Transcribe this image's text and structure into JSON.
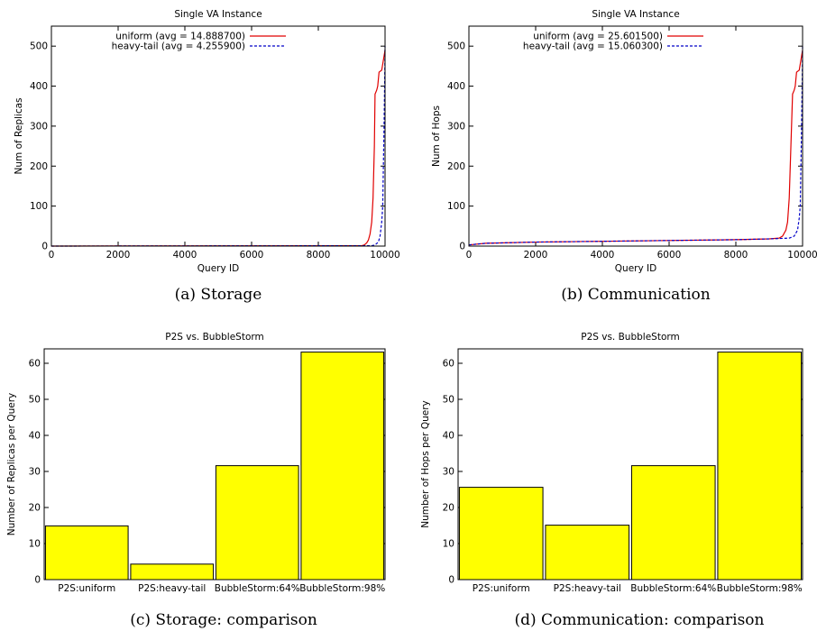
{
  "chart_data": [
    {
      "id": "a",
      "type": "line",
      "title": "Single VA Instance",
      "xlabel": "Query ID",
      "ylabel": "Num of Replicas",
      "xlim": [
        0,
        10000
      ],
      "ylim": [
        0,
        550
      ],
      "xticks": [
        0,
        2000,
        4000,
        6000,
        8000,
        10000
      ],
      "yticks": [
        0,
        100,
        200,
        300,
        400,
        500
      ],
      "legend_position": "top-right",
      "caption": "(a) Storage",
      "series": [
        {
          "name": "uniform (avg = 14.888700)",
          "color": "#e00000",
          "style": "solid",
          "points": [
            [
              0,
              0
            ],
            [
              9300,
              1
            ],
            [
              9380,
              3
            ],
            [
              9450,
              8
            ],
            [
              9500,
              15
            ],
            [
              9550,
              30
            ],
            [
              9600,
              60
            ],
            [
              9640,
              120
            ],
            [
              9680,
              250
            ],
            [
              9700,
              380
            ],
            [
              9750,
              390
            ],
            [
              9780,
              400
            ],
            [
              9820,
              435
            ],
            [
              9900,
              440
            ],
            [
              9960,
              470
            ],
            [
              10000,
              490
            ]
          ]
        },
        {
          "name": "heavy-tail (avg = 4.255900)",
          "color": "#0000c8",
          "style": "dashed",
          "points": [
            [
              0,
              0
            ],
            [
              9600,
              1
            ],
            [
              9700,
              3
            ],
            [
              9800,
              10
            ],
            [
              9850,
              25
            ],
            [
              9900,
              60
            ],
            [
              9930,
              100
            ],
            [
              9950,
              200
            ],
            [
              9970,
              300
            ],
            [
              9990,
              420
            ],
            [
              10000,
              500
            ]
          ]
        }
      ]
    },
    {
      "id": "b",
      "type": "line",
      "title": "Single VA Instance",
      "xlabel": "Query ID",
      "ylabel": "Num of Hops",
      "xlim": [
        0,
        10000
      ],
      "ylim": [
        0,
        550
      ],
      "xticks": [
        0,
        2000,
        4000,
        6000,
        8000,
        10000
      ],
      "yticks": [
        0,
        100,
        200,
        300,
        400,
        500
      ],
      "legend_position": "top-right",
      "caption": "(b) Communication",
      "series": [
        {
          "name": "uniform (avg = 25.601500)",
          "color": "#e00000",
          "style": "solid",
          "points": [
            [
              0,
              3
            ],
            [
              500,
              7
            ],
            [
              2000,
              10
            ],
            [
              4000,
              12
            ],
            [
              6000,
              14
            ],
            [
              8000,
              16
            ],
            [
              9000,
              18
            ],
            [
              9300,
              20
            ],
            [
              9400,
              25
            ],
            [
              9500,
              40
            ],
            [
              9550,
              60
            ],
            [
              9600,
              120
            ],
            [
              9650,
              250
            ],
            [
              9700,
              380
            ],
            [
              9750,
              390
            ],
            [
              9780,
              400
            ],
            [
              9820,
              435
            ],
            [
              9900,
              440
            ],
            [
              9960,
              470
            ],
            [
              10000,
              490
            ]
          ]
        },
        {
          "name": "heavy-tail (avg = 15.060300)",
          "color": "#0000c8",
          "style": "dashed",
          "points": [
            [
              0,
              3
            ],
            [
              500,
              7
            ],
            [
              2000,
              10
            ],
            [
              4000,
              12
            ],
            [
              6000,
              14
            ],
            [
              8000,
              16
            ],
            [
              9000,
              18
            ],
            [
              9600,
              20
            ],
            [
              9750,
              25
            ],
            [
              9850,
              40
            ],
            [
              9900,
              70
            ],
            [
              9930,
              100
            ],
            [
              9950,
              200
            ],
            [
              9970,
              300
            ],
            [
              9990,
              420
            ],
            [
              10000,
              500
            ]
          ]
        }
      ]
    },
    {
      "id": "c",
      "type": "bar",
      "title": "P2S vs. BubbleStorm",
      "xlabel": "",
      "ylabel": "Number of Replicas per Query",
      "ylim": [
        0,
        64
      ],
      "yticks": [
        0,
        10,
        20,
        30,
        40,
        50,
        60
      ],
      "bar_color": "#ffff00",
      "categories": [
        "P2S:uniform",
        "P2S:heavy-tail",
        "BubbleStorm:64%",
        "BubbleStorm:98%"
      ],
      "values": [
        14.9,
        4.3,
        31.6,
        63.1
      ],
      "caption": "(c) Storage: comparison"
    },
    {
      "id": "d",
      "type": "bar",
      "title": "P2S vs. BubbleStorm",
      "xlabel": "",
      "ylabel": "Number of Hops per Query",
      "ylim": [
        0,
        64
      ],
      "yticks": [
        0,
        10,
        20,
        30,
        40,
        50,
        60
      ],
      "bar_color": "#ffff00",
      "categories": [
        "P2S:uniform",
        "P2S:heavy-tail",
        "BubbleStorm:64%",
        "BubbleStorm:98%"
      ],
      "values": [
        25.6,
        15.1,
        31.6,
        63.1
      ],
      "caption": "(d) Communication: comparison"
    }
  ]
}
